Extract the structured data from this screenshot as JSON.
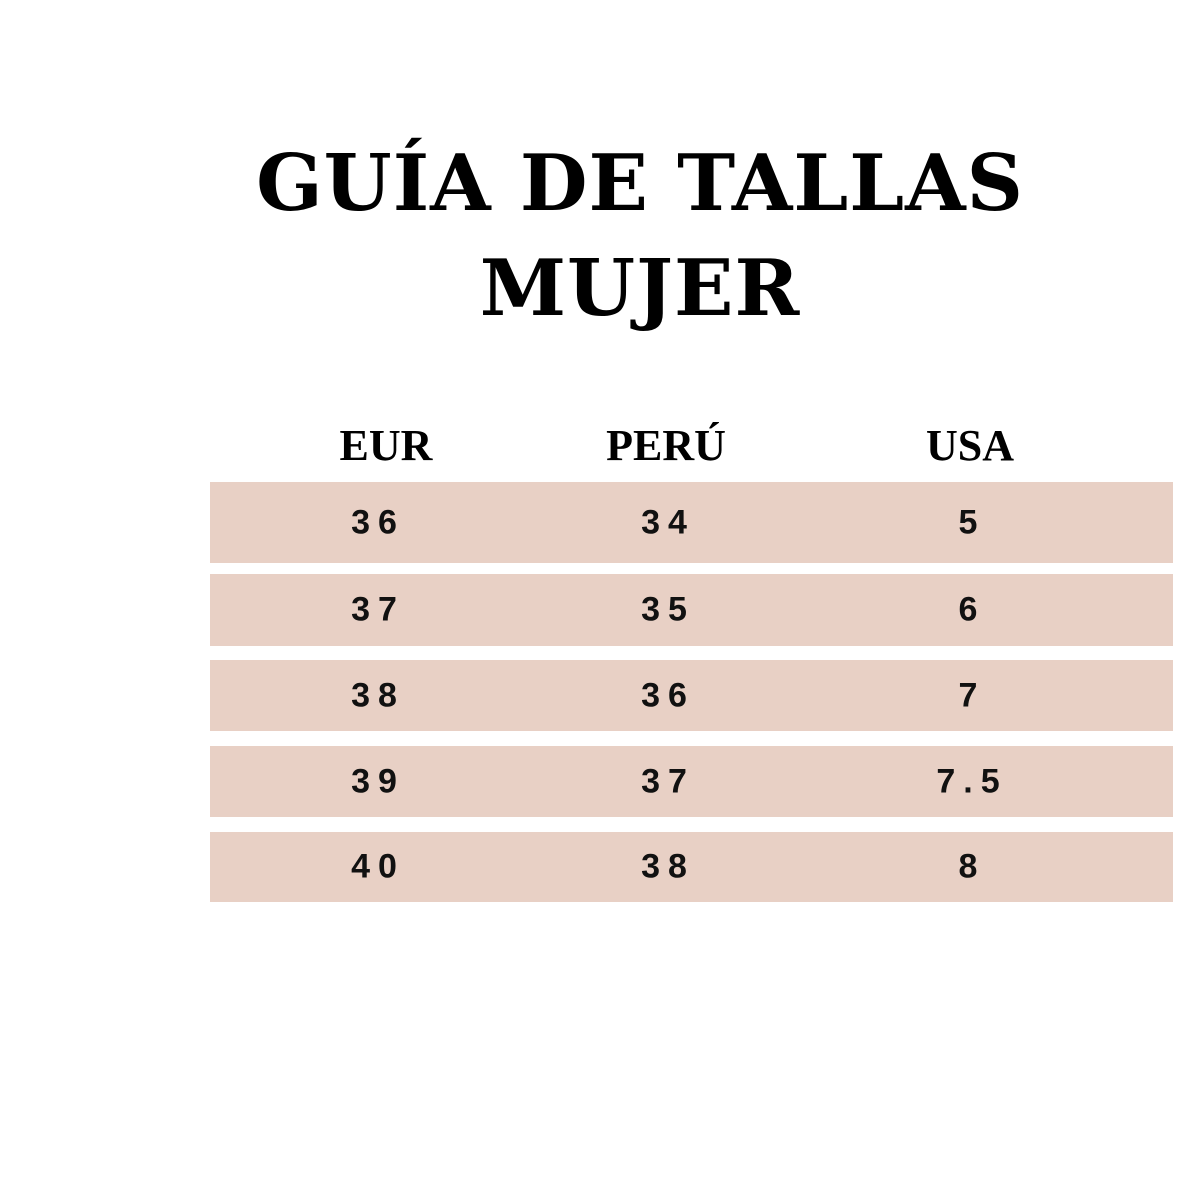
{
  "title": {
    "line1": "GUÍA DE TALLAS",
    "line2": "MUJER"
  },
  "headers": [
    "EUR",
    "PERÚ",
    "USA"
  ],
  "rows": [
    [
      "36",
      "34",
      "5"
    ],
    [
      "37",
      "35",
      "6"
    ],
    [
      "38",
      "36",
      "7"
    ],
    [
      "39",
      "37",
      "7.5"
    ],
    [
      "40",
      "38",
      "8"
    ]
  ],
  "colors": {
    "row_background": "#e8d0c5",
    "text": "#000000"
  }
}
